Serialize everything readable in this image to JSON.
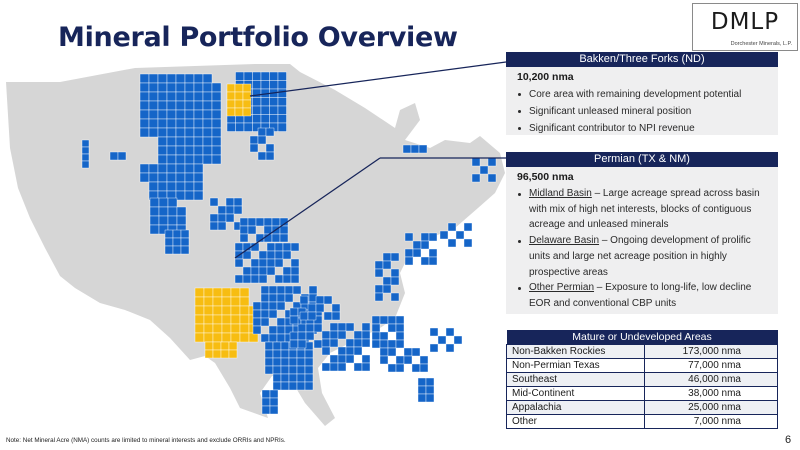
{
  "page": {
    "title": "Mineral Portfolio Overview",
    "page_number": "6",
    "note": "Note: Net Mineral Acre (NMA) counts are limited to mineral interests and exclude ORRIs and NPRIs."
  },
  "logo": {
    "main": "DMLP",
    "sub": "Dorchester Minerals, L.P."
  },
  "colors": {
    "navy": "#17255a",
    "blue": "#1565c8",
    "gold": "#f7bd12",
    "land": "#d6d6d6"
  },
  "bakken": {
    "header": "Bakken/Three Forks (ND)",
    "acreage": "10,200 nma",
    "bullets": [
      "Core area with remaining development potential",
      "Significant unleased mineral position",
      "Significant contributor to NPI revenue"
    ]
  },
  "permian": {
    "header": "Permian (TX & NM)",
    "acreage": "96,500 nma",
    "bullets": [
      {
        "term": "Midland Basin",
        "text": " – Large acreage spread across basin with mix of high net interests, blocks of contiguous acreage and unleased minerals"
      },
      {
        "term": "Delaware Basin",
        "text": " – Ongoing development of prolific units and large net acreage position in highly prospective areas"
      },
      {
        "term": "Other Permian",
        "text": " – Exposure to long-life, low decline EOR and conventional CBP units"
      }
    ]
  },
  "areas": {
    "header": "Mature or Undeveloped Areas",
    "rows": [
      {
        "area": "Non-Bakken Rockies",
        "value": "173,000 nma"
      },
      {
        "area": "Non-Permian Texas",
        "value": "77,000 nma"
      },
      {
        "area": "Southeast",
        "value": "46,000 nma"
      },
      {
        "area": "Mid-Continent",
        "value": "38,000 nma"
      },
      {
        "area": "Appalachia",
        "value": "25,000 nma"
      },
      {
        "area": "Other",
        "value": "7,000 nma"
      }
    ]
  }
}
